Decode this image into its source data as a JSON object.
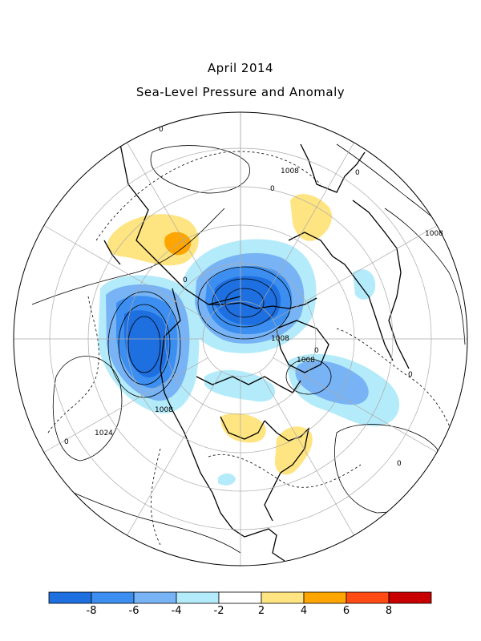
{
  "title": "April 2014",
  "subtitle": "Sea-Level Pressure and Anomaly",
  "contour_labels": [
    "0",
    "0",
    "0",
    "0",
    "0",
    "0",
    "0",
    "0",
    "1008",
    "1008",
    "1008",
    "1008",
    "1008",
    "1024"
  ],
  "colorbar": {
    "colors": [
      "#1e6fe0",
      "#3c8ff0",
      "#78b4f5",
      "#b4ebfa",
      "#ffffff",
      "#ffe482",
      "#ffa500",
      "#ff4b14",
      "#c80000"
    ],
    "tick_labels": [
      "-8",
      "-6",
      "-4",
      "-2",
      "2",
      "4",
      "6",
      "8"
    ]
  },
  "anomaly_colors": {
    "neg_strong": "#1e6fe0",
    "neg_mid": "#3c8ff0",
    "neg_light": "#78b4f5",
    "neg_faint": "#b4ebfa",
    "pos_faint": "#ffe482",
    "pos_mid": "#ffa500"
  }
}
